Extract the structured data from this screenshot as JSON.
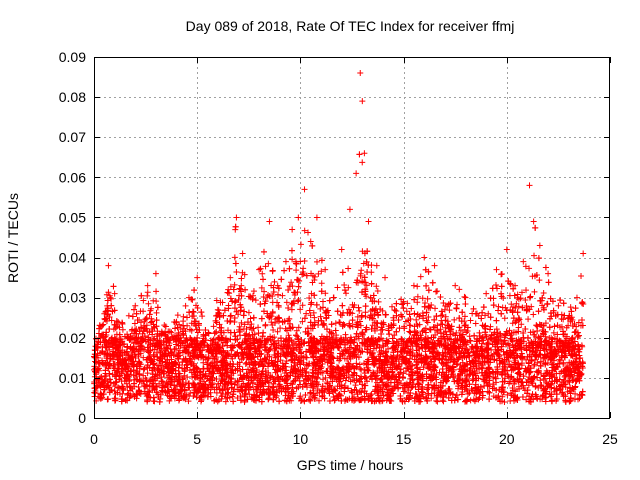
{
  "chart_data": {
    "type": "scatter",
    "title": "Day 089 of 2018, Rate Of TEC Index for receiver ffmj",
    "xlabel": "GPS time / hours",
    "ylabel": "ROTI / TECUs",
    "xlim": [
      0,
      25
    ],
    "ylim": [
      0,
      0.09
    ],
    "x_ticks": [
      0,
      5,
      10,
      15,
      20,
      25
    ],
    "x_tick_labels": [
      "0",
      "5",
      "10",
      "15",
      "20",
      "25"
    ],
    "y_ticks": [
      0,
      0.01,
      0.02,
      0.03,
      0.04,
      0.05,
      0.06,
      0.07,
      0.08,
      0.09
    ],
    "y_tick_labels": [
      "0",
      "0.01",
      "0.02",
      "0.03",
      "0.04",
      "0.05",
      "0.06",
      "0.07",
      "0.08",
      "0.09"
    ],
    "grid": true,
    "marker": "+",
    "color": "#ff0000",
    "series": [
      {
        "name": "ROTI",
        "x": [
          0.1,
          0.3,
          0.5,
          0.7,
          1.0,
          1.4,
          2.0,
          2.6,
          3.0,
          3.5,
          4.0,
          4.6,
          5.0,
          5.5,
          6.0,
          6.5,
          6.9,
          7.2,
          7.6,
          8.0,
          8.5,
          8.9,
          9.3,
          9.6,
          9.9,
          10.2,
          10.5,
          10.8,
          11.2,
          11.6,
          12.0,
          12.4,
          12.7,
          12.9,
          13.0,
          13.1,
          13.3,
          13.7,
          14.1,
          14.5,
          15.0,
          15.5,
          16.0,
          16.5,
          17.0,
          17.5,
          18.0,
          18.5,
          19.0,
          19.5,
          20.0,
          20.4,
          20.8,
          21.1,
          21.3,
          21.6,
          22.0,
          22.5,
          23.0,
          23.4,
          23.7
        ],
        "y": [
          0.012,
          0.02,
          0.026,
          0.038,
          0.031,
          0.022,
          0.028,
          0.033,
          0.036,
          0.019,
          0.024,
          0.03,
          0.035,
          0.018,
          0.027,
          0.032,
          0.05,
          0.041,
          0.03,
          0.037,
          0.049,
          0.033,
          0.039,
          0.047,
          0.05,
          0.057,
          0.044,
          0.05,
          0.037,
          0.03,
          0.042,
          0.052,
          0.061,
          0.086,
          0.079,
          0.066,
          0.049,
          0.038,
          0.035,
          0.025,
          0.029,
          0.033,
          0.04,
          0.038,
          0.027,
          0.033,
          0.03,
          0.026,
          0.031,
          0.037,
          0.042,
          0.033,
          0.039,
          0.058,
          0.049,
          0.043,
          0.036,
          0.028,
          0.025,
          0.03,
          0.041
        ]
      }
    ]
  }
}
